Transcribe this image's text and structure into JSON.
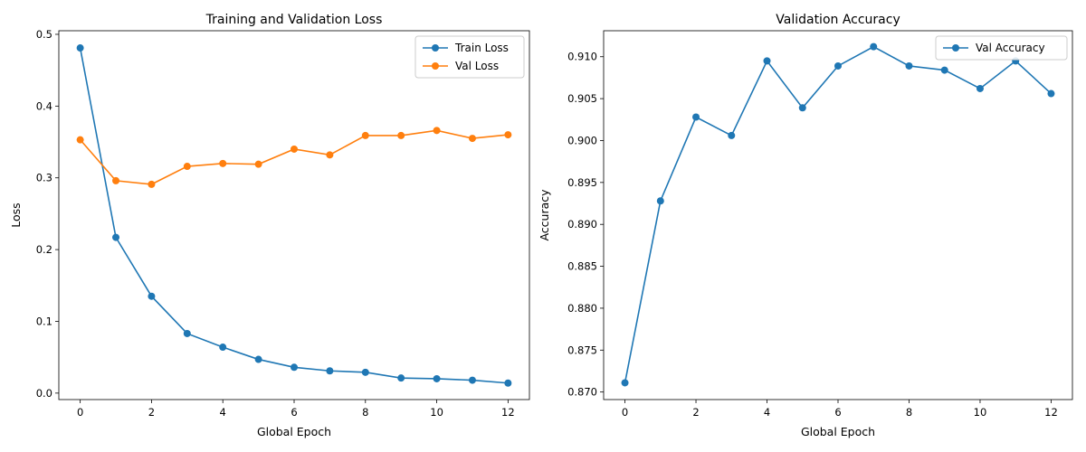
{
  "chart_data": [
    {
      "type": "line",
      "title": "Training and Validation Loss",
      "xlabel": "Global Epoch",
      "ylabel": "Loss",
      "x": [
        0,
        1,
        2,
        3,
        4,
        5,
        6,
        7,
        8,
        9,
        10,
        11,
        12
      ],
      "xlim": [
        -0.6,
        12.6
      ],
      "ylim": [
        -0.009,
        0.505
      ],
      "xticks": [
        0,
        2,
        4,
        6,
        8,
        10,
        12
      ],
      "xtick_labels": [
        "0",
        "2",
        "4",
        "6",
        "8",
        "10",
        "12"
      ],
      "yticks": [
        0.0,
        0.1,
        0.2,
        0.3,
        0.4,
        0.5
      ],
      "ytick_labels": [
        "0.0",
        "0.1",
        "0.2",
        "0.3",
        "0.4",
        "0.5"
      ],
      "grid": false,
      "legend": "top-right",
      "series": [
        {
          "name": "Train Loss",
          "color": "#1f77b4",
          "marker": "circle",
          "values": [
            0.481,
            0.217,
            0.135,
            0.083,
            0.064,
            0.047,
            0.036,
            0.031,
            0.029,
            0.021,
            0.02,
            0.018,
            0.014
          ]
        },
        {
          "name": "Val Loss",
          "color": "#ff7f0e",
          "marker": "circle",
          "values": [
            0.353,
            0.296,
            0.291,
            0.316,
            0.32,
            0.319,
            0.34,
            0.332,
            0.359,
            0.359,
            0.366,
            0.355,
            0.36
          ]
        }
      ]
    },
    {
      "type": "line",
      "title": "Validation Accuracy",
      "xlabel": "Global Epoch",
      "ylabel": "Accuracy",
      "x": [
        0,
        1,
        2,
        3,
        4,
        5,
        6,
        7,
        8,
        9,
        10,
        11,
        12
      ],
      "xlim": [
        -0.6,
        12.6
      ],
      "ylim": [
        0.8691,
        0.9131
      ],
      "xticks": [
        0,
        2,
        4,
        6,
        8,
        10,
        12
      ],
      "xtick_labels": [
        "0",
        "2",
        "4",
        "6",
        "8",
        "10",
        "12"
      ],
      "yticks": [
        0.87,
        0.875,
        0.88,
        0.885,
        0.89,
        0.895,
        0.9,
        0.905,
        0.91
      ],
      "ytick_labels": [
        "0.870",
        "0.875",
        "0.880",
        "0.885",
        "0.890",
        "0.895",
        "0.900",
        "0.905",
        "0.910"
      ],
      "grid": false,
      "legend": "top-right",
      "series": [
        {
          "name": "Val Accuracy",
          "color": "#1f77b4",
          "marker": "circle",
          "values": [
            0.8711,
            0.8928,
            0.9028,
            0.9006,
            0.9095,
            0.9039,
            0.9089,
            0.9112,
            0.9089,
            0.9084,
            0.9062,
            0.9095,
            0.9056
          ]
        }
      ]
    }
  ]
}
